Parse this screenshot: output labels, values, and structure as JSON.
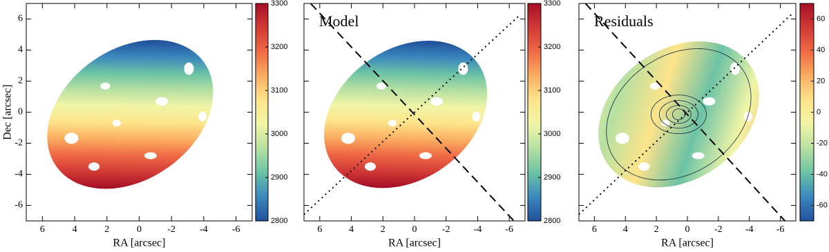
{
  "chart_data": [
    {
      "type": "map",
      "xlabel": "RA [arcsec]",
      "ylabel": "Dec [arcsec]",
      "xlim": [
        7,
        -7
      ],
      "ylim": [
        -7,
        7
      ],
      "xticks": [
        6,
        4,
        2,
        0,
        -2,
        -4,
        -6
      ],
      "yticks": [
        -6,
        -4,
        -2,
        0,
        2,
        4,
        6
      ],
      "colorbar": {
        "lim": [
          2800,
          3300
        ],
        "ticks": [
          2800,
          2900,
          3000,
          3100,
          3200,
          3300
        ]
      },
      "colormap": [
        "#21509c",
        "#3a88bd",
        "#6cc3a5",
        "#b6e0a2",
        "#f1f5a6",
        "#fde48b",
        "#fbae62",
        "#ef6a45",
        "#d33a36",
        "#a50f26"
      ]
    },
    {
      "type": "map",
      "title": "Model",
      "xlabel": "RA [arcsec]",
      "xlim": [
        7,
        -7
      ],
      "ylim": [
        -7,
        7
      ],
      "xticks": [
        6,
        4,
        2,
        0,
        -2,
        -4,
        -6
      ],
      "yticks": [
        -6,
        -4,
        -2,
        0,
        2,
        4,
        6
      ],
      "colorbar": {
        "lim": [
          2800,
          3300
        ],
        "ticks": [
          2800,
          2900,
          3000,
          3100,
          3200,
          3300
        ]
      },
      "colormap": [
        "#21509c",
        "#3a88bd",
        "#6cc3a5",
        "#b6e0a2",
        "#f1f5a6",
        "#fde48b",
        "#fbae62",
        "#ef6a45",
        "#d33a36",
        "#a50f26"
      ]
    },
    {
      "type": "map",
      "title": "Residuals",
      "xlabel": "RA [arcsec]",
      "xlim": [
        7,
        -7
      ],
      "ylim": [
        -7,
        7
      ],
      "xticks": [
        6,
        4,
        2,
        0,
        -2,
        -4,
        -6
      ],
      "yticks": [
        -6,
        -4,
        -2,
        0,
        2,
        4,
        6
      ],
      "colorbar": {
        "lim": [
          -70,
          70
        ],
        "ticks": [
          -60,
          -40,
          -20,
          0,
          20,
          40,
          60
        ]
      },
      "colormap": [
        "#21509c",
        "#3a88bd",
        "#6cc3a5",
        "#b6e0a2",
        "#f1f5a6",
        "#fde48b",
        "#fbae62",
        "#ef6a45",
        "#d33a36",
        "#a50f26"
      ]
    }
  ]
}
